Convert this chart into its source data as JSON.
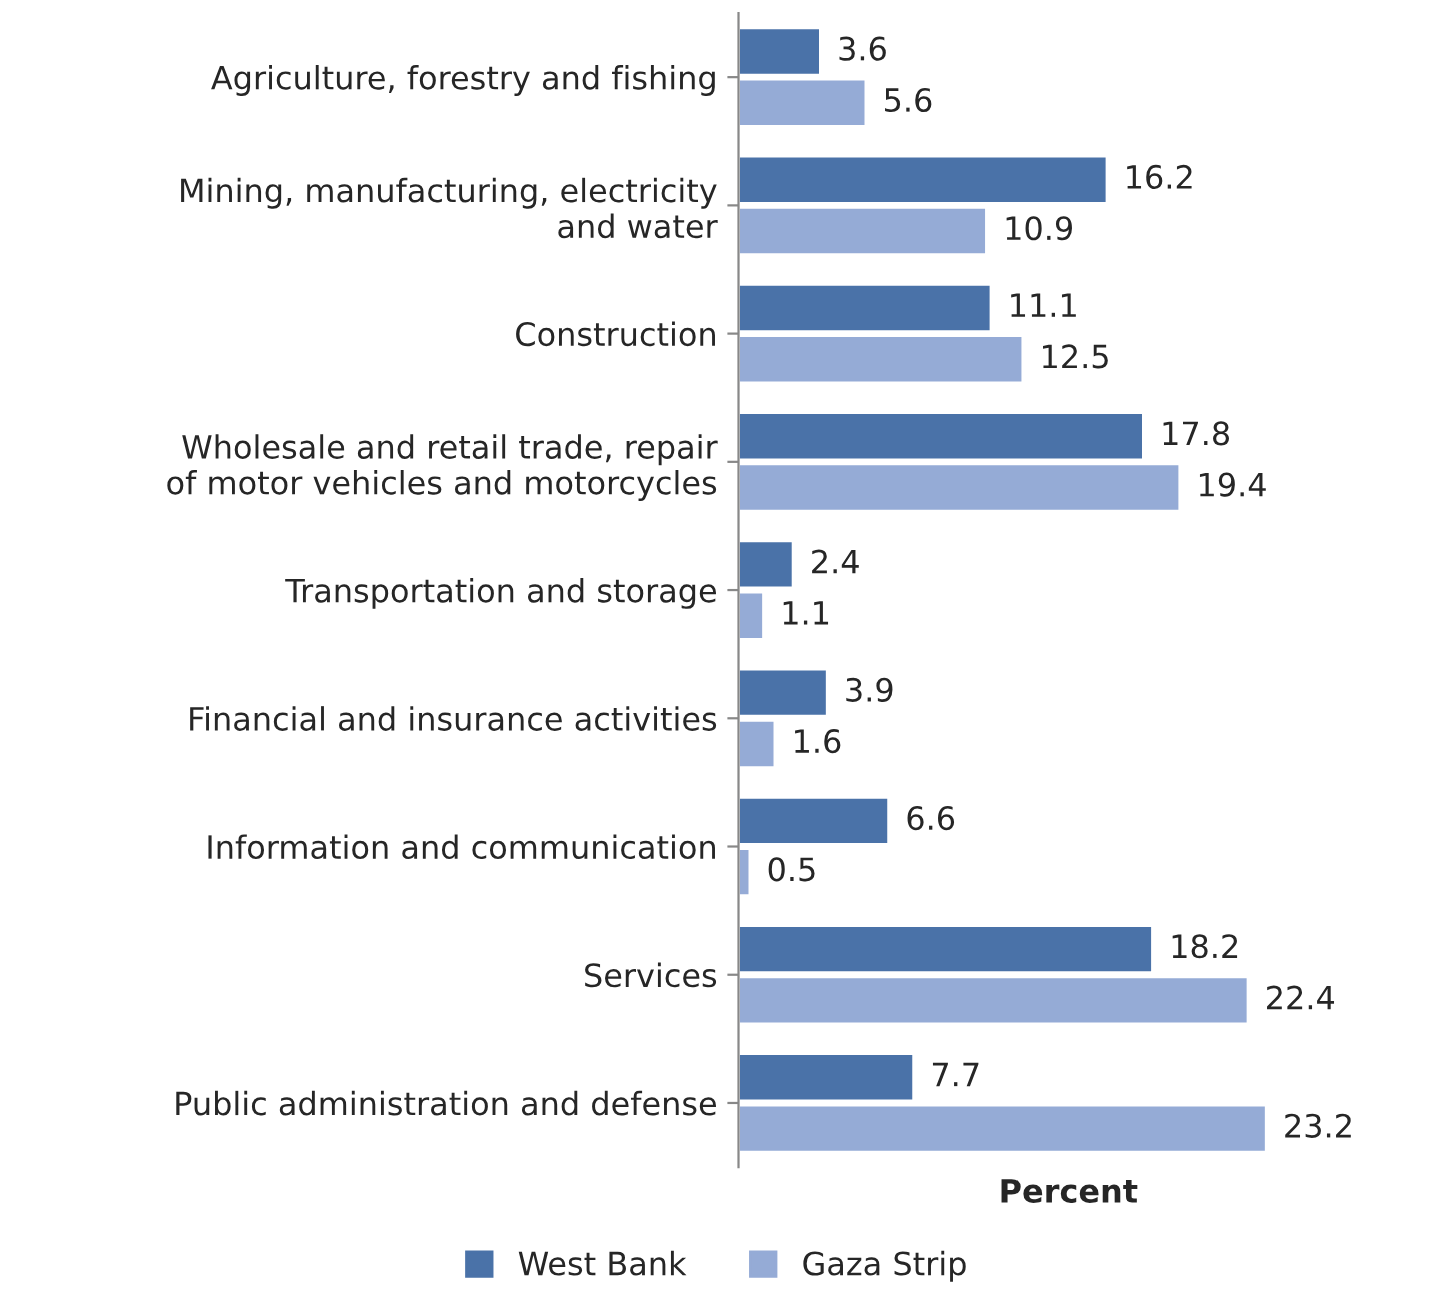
{
  "chart_data": {
    "type": "bar",
    "orientation": "horizontal",
    "xlabel": "Percent",
    "categories": [
      "Agriculture, forestry and fishing",
      "Mining, manufacturing, electricity\nand water",
      "Construction",
      "Wholesale and retail trade, repair\nof motor vehicles and motorcycles",
      "Transportation and storage",
      "Financial and insurance activities",
      "Information and communication",
      "Services",
      "Public administration and defense"
    ],
    "series": [
      {
        "name": "West Bank",
        "color": "#4a72a8",
        "values": [
          3.6,
          16.2,
          11.1,
          17.8,
          2.4,
          3.9,
          6.6,
          18.2,
          7.7
        ]
      },
      {
        "name": "Gaza Strip",
        "color": "#95abd6",
        "values": [
          5.6,
          10.9,
          12.5,
          19.4,
          1.1,
          1.6,
          0.5,
          22.4,
          23.2
        ]
      }
    ],
    "data_labels": true,
    "tick_labels": "y",
    "grid": false,
    "legend": "bottom"
  }
}
